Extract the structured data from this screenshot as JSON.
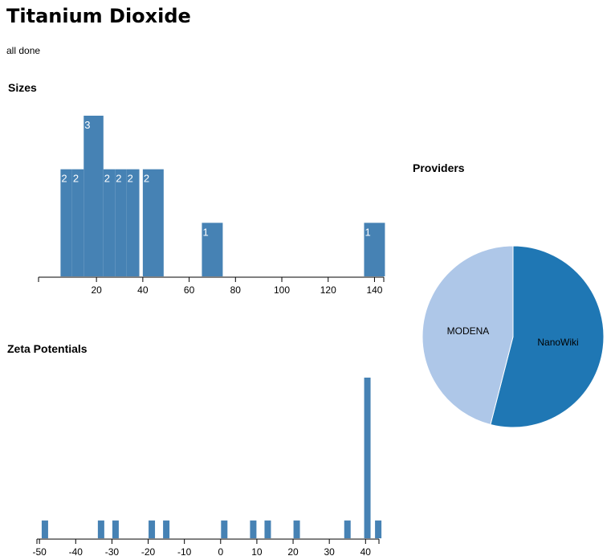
{
  "page": {
    "title": "Titanium Dioxide",
    "status": "all done"
  },
  "sections": {
    "sizes": "Sizes",
    "zeta": "Zeta Potentials",
    "providers": "Providers"
  },
  "chart_data": [
    {
      "type": "bar",
      "title": "Sizes",
      "xlim": [
        -5,
        144
      ],
      "ylim": [
        0,
        3
      ],
      "x_ticks": [
        20,
        40,
        60,
        80,
        100,
        120,
        140
      ],
      "bars": [
        {
          "x0": 4.5,
          "x1": 9.5,
          "value": 2,
          "label": "2"
        },
        {
          "x0": 9.5,
          "x1": 14.5,
          "value": 2,
          "label": "2"
        },
        {
          "x0": 14.5,
          "x1": 23,
          "value": 3,
          "label": "3"
        },
        {
          "x0": 23,
          "x1": 28,
          "value": 2,
          "label": "2"
        },
        {
          "x0": 28,
          "x1": 33,
          "value": 2,
          "label": "2"
        },
        {
          "x0": 33,
          "x1": 38.5,
          "value": 2,
          "label": "2"
        },
        {
          "x0": 40,
          "x1": 49,
          "value": 2,
          "label": "2"
        },
        {
          "x0": 65.5,
          "x1": 74.5,
          "value": 1,
          "label": "1"
        },
        {
          "x0": 135.5,
          "x1": 144.5,
          "value": 1,
          "label": "1"
        }
      ],
      "color": "#4682b4"
    },
    {
      "type": "bar",
      "title": "Zeta Potentials",
      "xlim": [
        -50.7,
        43.7
      ],
      "ylim": [
        0,
        9
      ],
      "x_ticks": [
        -50,
        -40,
        -30,
        -20,
        -10,
        0,
        10,
        20,
        30,
        40
      ],
      "bars": [
        {
          "x": -48.5,
          "value": 1
        },
        {
          "x": -33,
          "value": 1
        },
        {
          "x": -29,
          "value": 1
        },
        {
          "x": -19,
          "value": 1
        },
        {
          "x": -15,
          "value": 1
        },
        {
          "x": 1,
          "value": 1
        },
        {
          "x": 9,
          "value": 1
        },
        {
          "x": 13,
          "value": 1
        },
        {
          "x": 21,
          "value": 1
        },
        {
          "x": 35,
          "value": 1
        },
        {
          "x": 40.5,
          "value": 9
        },
        {
          "x": 43.5,
          "value": 1
        }
      ],
      "color": "#4682b4"
    },
    {
      "type": "pie",
      "title": "Providers",
      "slices": [
        {
          "label": "NanoWiki",
          "value": 54,
          "color": "#1f77b4"
        },
        {
          "label": "MODENA",
          "value": 46,
          "color": "#aec7e8"
        }
      ]
    }
  ]
}
